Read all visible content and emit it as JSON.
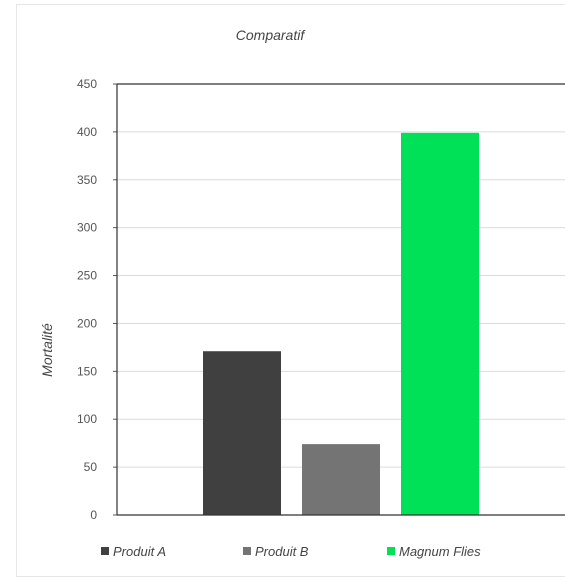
{
  "chart_data": {
    "type": "bar",
    "title": "Comparatif",
    "xlabel": "",
    "ylabel": "Mortalité",
    "categories": [
      "Produit A",
      "Produit B",
      "Magnum Flies"
    ],
    "values": [
      171,
      74,
      399
    ],
    "colors": [
      "#404040",
      "#747474",
      "#00e157"
    ],
    "ylim": [
      0,
      450
    ],
    "yticks": [
      "0",
      "50",
      "100",
      "150",
      "200",
      "250",
      "300",
      "350",
      "400",
      "450"
    ],
    "grid": true,
    "legend": {
      "position": "bottom",
      "entries": [
        "Produit A",
        "Produit B",
        "Magnum Flies"
      ]
    }
  }
}
